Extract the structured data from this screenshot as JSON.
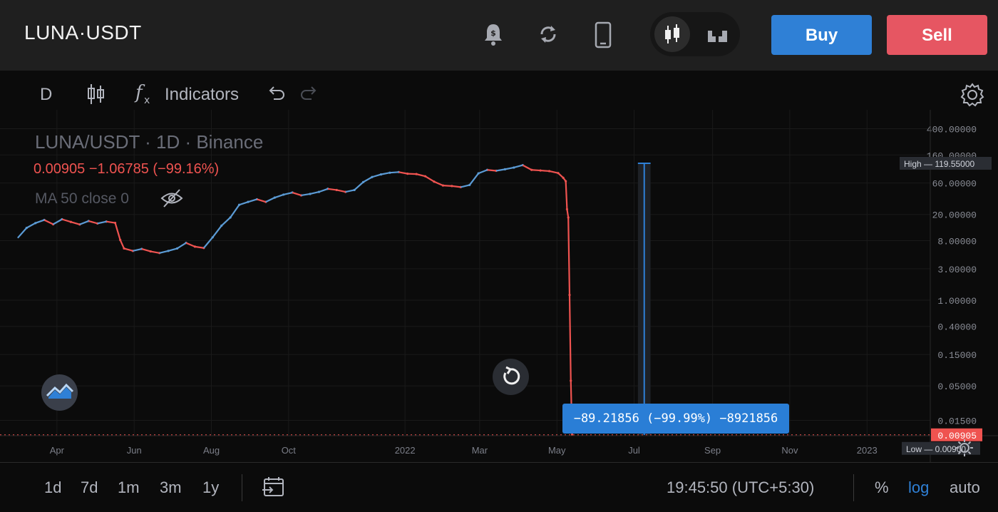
{
  "header": {
    "symbol": "LUNA·USDT",
    "buy_label": "Buy",
    "sell_label": "Sell",
    "icons": [
      "price-alert-bell-icon",
      "refresh-icon",
      "mobile-icon",
      "candles-chart-icon",
      "depth-chart-icon"
    ]
  },
  "toolbar": {
    "interval": "D",
    "indicators_label": "Indicators"
  },
  "legend": {
    "title": "LUNA/USDT · 1D · Binance",
    "values": "0.00905  −1.06785 (−99.16%)",
    "ma": "MA 50 close 0"
  },
  "tooltip": {
    "text": "−89.21856 (−99.99%) −8921856"
  },
  "labels": {
    "high_tag": "High",
    "high_value": "119.55000",
    "low_tag": "Low",
    "low_value": "0.00900",
    "last_value": "0.00905"
  },
  "bottom": {
    "ranges": [
      "1d",
      "7d",
      "1m",
      "3m",
      "1y"
    ],
    "time": "19:45:50 (UTC+5:30)",
    "percent": "%",
    "log": "log",
    "auto": "auto"
  },
  "colors": {
    "up": "#5b9bd5",
    "down": "#ef5350",
    "accent": "#2f80d6",
    "sell": "#e65662"
  },
  "chart_data": {
    "type": "line",
    "title": "LUNA/USDT · 1D · Binance",
    "y_scale": "log",
    "y_ticks": [
      "400.00000",
      "160.00000",
      "60.00000",
      "20.00000",
      "8.00000",
      "3.00000",
      "1.00000",
      "0.40000",
      "0.15000",
      "0.05000",
      "0.01500"
    ],
    "y_tick_values": [
      400,
      160,
      60,
      20,
      8,
      3,
      1,
      0.4,
      0.15,
      0.05,
      0.015
    ],
    "x_ticks": [
      "Apr",
      "Jun",
      "Aug",
      "Oct",
      "2022",
      "Mar",
      "May",
      "Jul",
      "Sep",
      "Nov",
      "2023"
    ],
    "x_tick_dates": [
      "2021-04-01",
      "2021-06-01",
      "2021-08-01",
      "2021-10-01",
      "2022-01-01",
      "2022-03-01",
      "2022-05-01",
      "2022-07-01",
      "2022-09-01",
      "2022-11-01",
      "2023-01-01"
    ],
    "ylim": [
      0.009,
      520
    ],
    "series": [
      {
        "values": [
          [
            "2021-03-01",
            8.8
          ],
          [
            "2021-03-08",
            12.5
          ],
          [
            "2021-03-15",
            14.8
          ],
          [
            "2021-03-22",
            16.5
          ],
          [
            "2021-03-29",
            14.2
          ],
          [
            "2021-04-05",
            16.9
          ],
          [
            "2021-04-12",
            15.4
          ],
          [
            "2021-04-19",
            14.1
          ],
          [
            "2021-04-26",
            15.9
          ],
          [
            "2021-05-03",
            14.6
          ],
          [
            "2021-05-10",
            15.6
          ],
          [
            "2021-05-17",
            14.9
          ],
          [
            "2021-05-21",
            8.2
          ],
          [
            "2021-05-24",
            6.1
          ],
          [
            "2021-05-31",
            5.6
          ],
          [
            "2021-06-07",
            6.0
          ],
          [
            "2021-06-14",
            5.5
          ],
          [
            "2021-06-21",
            5.2
          ],
          [
            "2021-06-28",
            5.6
          ],
          [
            "2021-07-05",
            6.1
          ],
          [
            "2021-07-12",
            7.4
          ],
          [
            "2021-07-19",
            6.5
          ],
          [
            "2021-07-26",
            6.2
          ],
          [
            "2021-08-02",
            9.0
          ],
          [
            "2021-08-09",
            13.5
          ],
          [
            "2021-08-16",
            18.0
          ],
          [
            "2021-08-23",
            28.0
          ],
          [
            "2021-08-30",
            31.0
          ],
          [
            "2021-09-06",
            34.0
          ],
          [
            "2021-09-13",
            31.0
          ],
          [
            "2021-09-20",
            36.0
          ],
          [
            "2021-09-27",
            40.0
          ],
          [
            "2021-10-04",
            43.0
          ],
          [
            "2021-10-11",
            39.0
          ],
          [
            "2021-10-18",
            41.0
          ],
          [
            "2021-10-25",
            44.0
          ],
          [
            "2021-11-01",
            49.0
          ],
          [
            "2021-11-08",
            47.0
          ],
          [
            "2021-11-15",
            44.0
          ],
          [
            "2021-11-22",
            47.0
          ],
          [
            "2021-11-29",
            62.0
          ],
          [
            "2021-12-06",
            74.0
          ],
          [
            "2021-12-13",
            81.0
          ],
          [
            "2021-12-20",
            86.0
          ],
          [
            "2021-12-27",
            88.0
          ],
          [
            "2022-01-03",
            83.0
          ],
          [
            "2022-01-10",
            82.0
          ],
          [
            "2022-01-17",
            76.0
          ],
          [
            "2022-01-24",
            63.0
          ],
          [
            "2022-01-31",
            55.0
          ],
          [
            "2022-02-07",
            54.0
          ],
          [
            "2022-02-14",
            52.0
          ],
          [
            "2022-02-21",
            56.0
          ],
          [
            "2022-02-28",
            84.0
          ],
          [
            "2022-03-07",
            95.0
          ],
          [
            "2022-03-14",
            92.0
          ],
          [
            "2022-03-21",
            97.0
          ],
          [
            "2022-03-28",
            103.0
          ],
          [
            "2022-04-04",
            112.0
          ],
          [
            "2022-04-11",
            95.0
          ],
          [
            "2022-04-18",
            93.0
          ],
          [
            "2022-04-25",
            91.0
          ],
          [
            "2022-05-02",
            85.0
          ],
          [
            "2022-05-06",
            72.0
          ],
          [
            "2022-05-08",
            64.0
          ],
          [
            "2022-05-09",
            24.0
          ],
          [
            "2022-05-10",
            18.0
          ],
          [
            "2022-05-11",
            1.2
          ],
          [
            "2022-05-12",
            0.06
          ],
          [
            "2022-05-13",
            0.00905
          ]
        ]
      }
    ],
    "measure": {
      "start": "2022-07-04",
      "end": "2022-07-14",
      "from": 119.55,
      "to": 0.009
    }
  }
}
